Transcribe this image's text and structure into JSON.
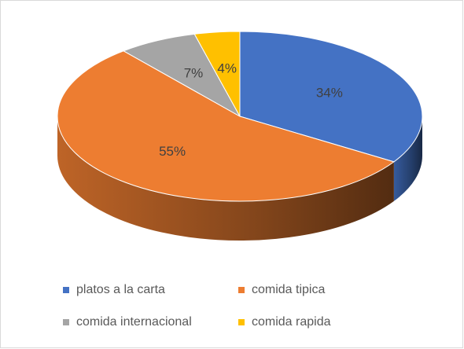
{
  "chart_data": {
    "type": "pie",
    "3d": true,
    "categories": [
      "platos a la carta",
      "comida tipica",
      "comida internacional",
      "comida rapida"
    ],
    "values": [
      34,
      55,
      7,
      4
    ],
    "value_labels": [
      "34%",
      "55%",
      "7%",
      "4%"
    ],
    "colors": [
      "#4472c4",
      "#ed7d31",
      "#a5a5a5",
      "#ffc000"
    ],
    "legend": "bottom"
  }
}
